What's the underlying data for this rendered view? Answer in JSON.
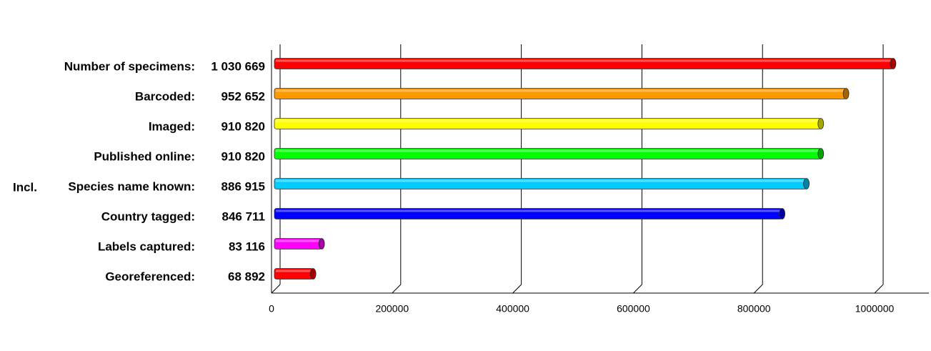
{
  "chart_data": {
    "type": "barh",
    "categories": [
      "Number of specimens:",
      "Barcoded:",
      "Imaged:",
      "Published online:",
      "Species name known:",
      "Country tagged:",
      "Labels captured:",
      "Georeferenced:"
    ],
    "values": [
      1030669,
      952652,
      910820,
      910820,
      886915,
      846711,
      83116,
      68892
    ],
    "value_labels": [
      "1 030 669",
      "952 652",
      "910 820",
      "910 820",
      "886 915",
      "846 711",
      "83 116",
      "68 892"
    ],
    "colors": [
      "#ff0000",
      "#ff9900",
      "#ffff00",
      "#00ff00",
      "#00ccff",
      "#0000ff",
      "#ff00ff",
      "#ff0000"
    ],
    "annotation": "Incl.",
    "xlim": [
      0,
      1090000
    ],
    "xticks": [
      0,
      200000,
      400000,
      600000,
      800000,
      1000000
    ],
    "grid": true
  }
}
